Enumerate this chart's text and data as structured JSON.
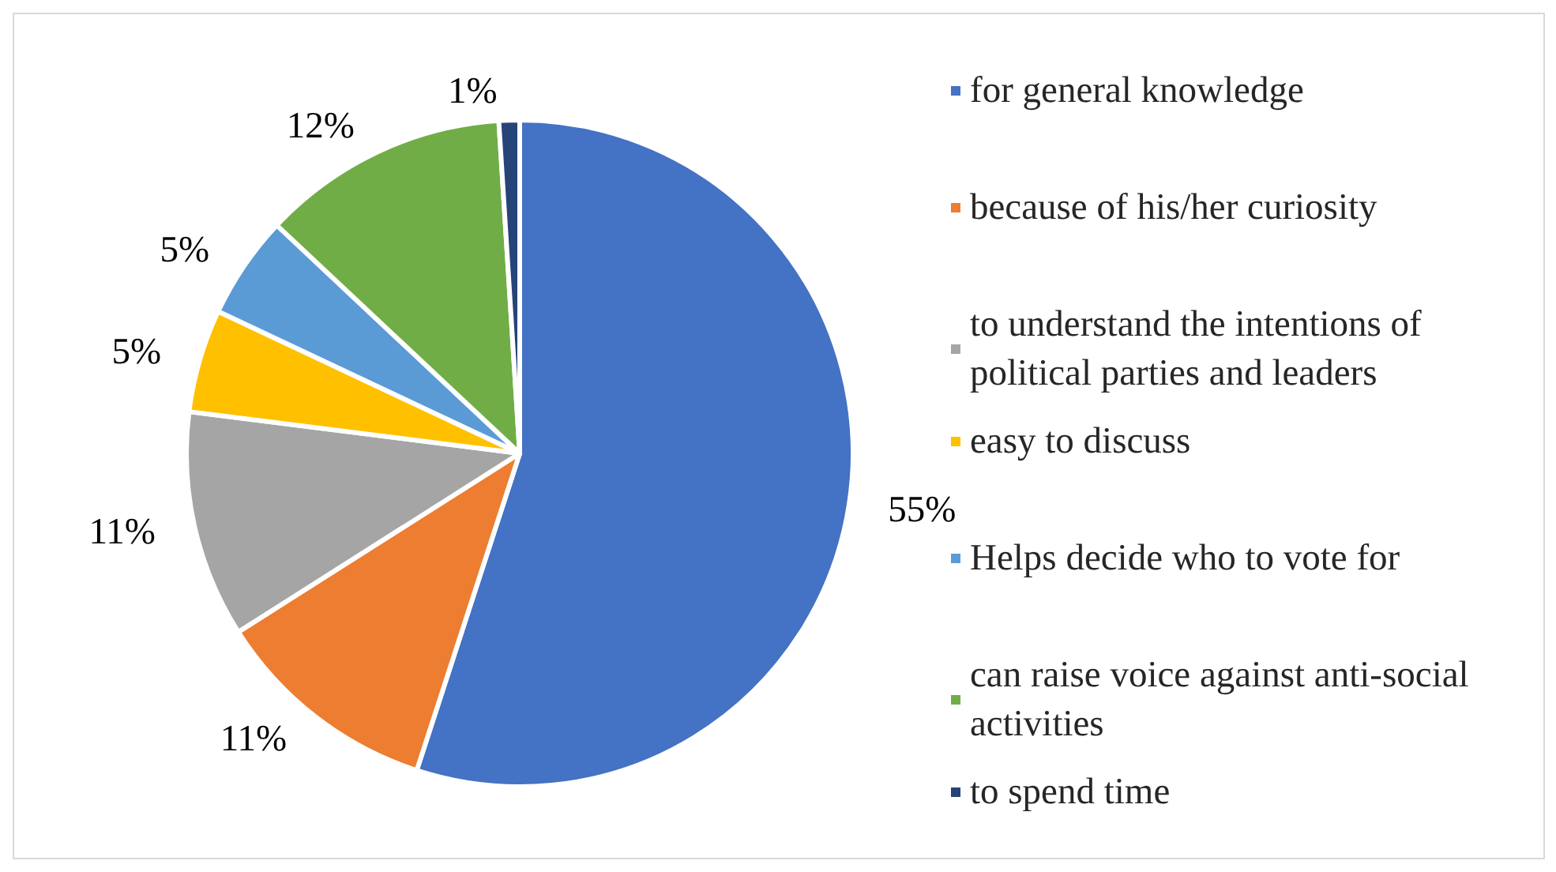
{
  "chart_data": {
    "type": "pie",
    "categories": [
      "for general knowledge",
      "because of his/her curiosity",
      "to understand the intentions of political parties and leaders",
      "easy to discuss",
      "Helps decide who to vote for",
      "can raise voice against anti-social activities",
      "to spend time"
    ],
    "values": [
      55,
      11,
      11,
      5,
      5,
      12,
      1
    ],
    "colors": [
      "#4472c4",
      "#ed7d31",
      "#a5a5a5",
      "#ffc000",
      "#5b9bd5",
      "#70ad47",
      "#264478"
    ],
    "value_labels": [
      "55%",
      "11%",
      "11%",
      "5%",
      "5%",
      "12%",
      "1%"
    ],
    "legend": "right"
  }
}
